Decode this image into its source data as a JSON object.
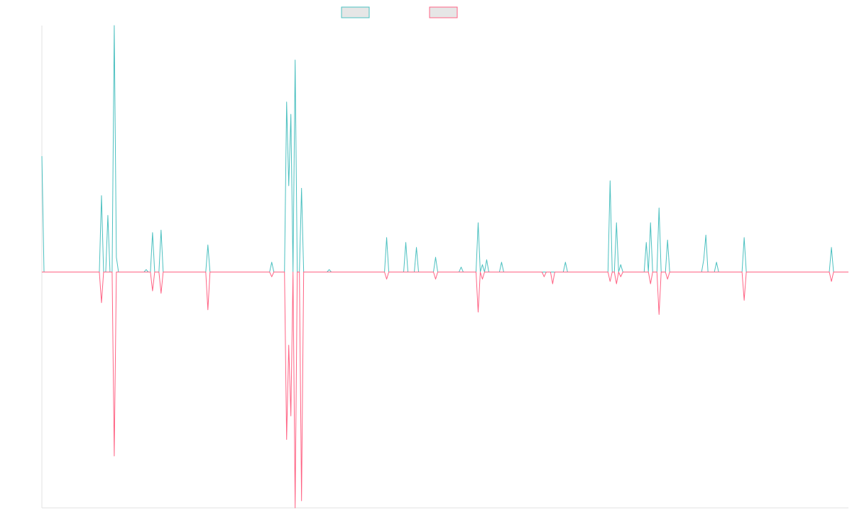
{
  "colors": {
    "series_a": "#4bc0c0",
    "series_b": "#ff6384",
    "legend_fill": "#e6e6e6",
    "axis": "#e0e0e0"
  },
  "legend": {
    "placement": "top-center",
    "items": [
      {
        "color": "#4bc0c0",
        "label": ""
      },
      {
        "color": "#ff6384",
        "label": ""
      }
    ]
  },
  "chart_data": {
    "type": "line",
    "title": "",
    "xlabel": "",
    "ylabel": "",
    "grid": false,
    "ticks_visible": false,
    "x_points": 380,
    "ylim": [
      -100,
      100
    ],
    "series": [
      {
        "color": "#4bc0c0",
        "spikes": [
          [
            0,
            47
          ],
          [
            28,
            31
          ],
          [
            31,
            23
          ],
          [
            34,
            100
          ],
          [
            35,
            6
          ],
          [
            49,
            1
          ],
          [
            52,
            16
          ],
          [
            56,
            17
          ],
          [
            78,
            11
          ],
          [
            108,
            4
          ],
          [
            115,
            69
          ],
          [
            116,
            35
          ],
          [
            117,
            64
          ],
          [
            119,
            86
          ],
          [
            122,
            34
          ],
          [
            135,
            1
          ],
          [
            162,
            14
          ],
          [
            171,
            12
          ],
          [
            176,
            10
          ],
          [
            185,
            6
          ],
          [
            197,
            2
          ],
          [
            205,
            20
          ],
          [
            207,
            3
          ],
          [
            209,
            5
          ],
          [
            216,
            4
          ],
          [
            246,
            4
          ],
          [
            267,
            37
          ],
          [
            270,
            20
          ],
          [
            272,
            3
          ],
          [
            284,
            12
          ],
          [
            286,
            20
          ],
          [
            290,
            26
          ],
          [
            294,
            13
          ],
          [
            311,
            5
          ],
          [
            312,
            15
          ],
          [
            317,
            4
          ],
          [
            330,
            14
          ],
          [
            371,
            10
          ]
        ]
      },
      {
        "color": "#ff6384",
        "spikes": [
          [
            28,
            -13
          ],
          [
            34,
            -78
          ],
          [
            52,
            -8
          ],
          [
            56,
            -9
          ],
          [
            78,
            -16
          ],
          [
            108,
            -2
          ],
          [
            115,
            -71
          ],
          [
            116,
            -31
          ],
          [
            117,
            -61
          ],
          [
            119,
            -100
          ],
          [
            122,
            -97
          ],
          [
            162,
            -3
          ],
          [
            185,
            -3
          ],
          [
            205,
            -17
          ],
          [
            207,
            -3
          ],
          [
            236,
            -2
          ],
          [
            240,
            -5
          ],
          [
            267,
            -4
          ],
          [
            270,
            -5
          ],
          [
            272,
            -2
          ],
          [
            286,
            -5
          ],
          [
            290,
            -18
          ],
          [
            294,
            -3
          ],
          [
            330,
            -12
          ],
          [
            371,
            -4
          ]
        ]
      }
    ]
  }
}
